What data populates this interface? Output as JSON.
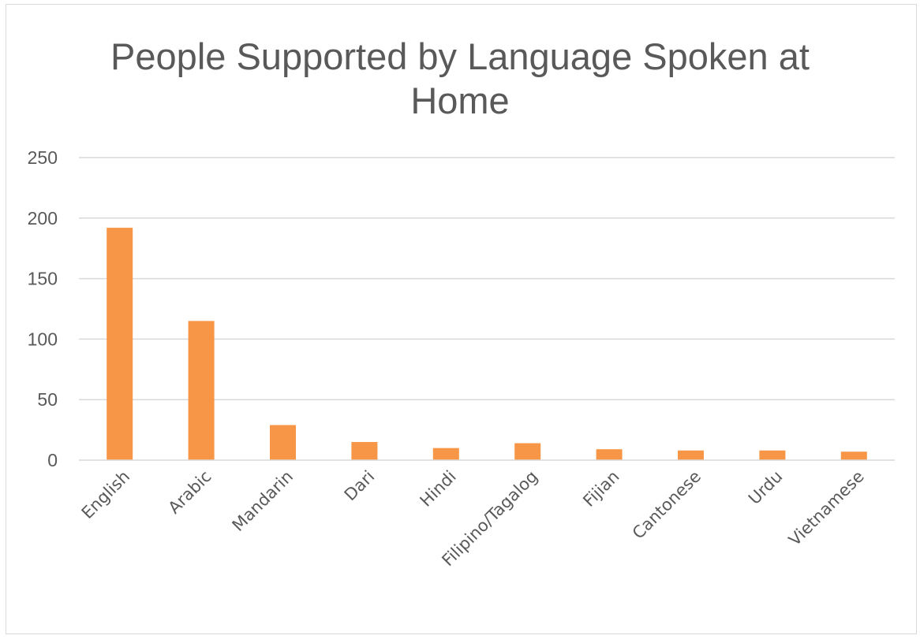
{
  "chart_data": {
    "type": "bar",
    "title_lines": [
      "People Supported by Language Spoken at",
      "Home"
    ],
    "categories": [
      "English",
      "Arabic",
      "Mandarin",
      "Dari",
      "Hindi",
      "Filipino/Tagalog",
      "Fijian",
      "Cantonese",
      "Urdu",
      "Vietnamese"
    ],
    "values": [
      192,
      115,
      29,
      15,
      10,
      14,
      9,
      8,
      8,
      7
    ],
    "yticks": [
      0,
      50,
      100,
      150,
      200,
      250
    ],
    "ylim": [
      0,
      250
    ],
    "grid": true,
    "legend": "none",
    "bar_color": "#f79646",
    "grid_color": "#d9d9d9"
  }
}
